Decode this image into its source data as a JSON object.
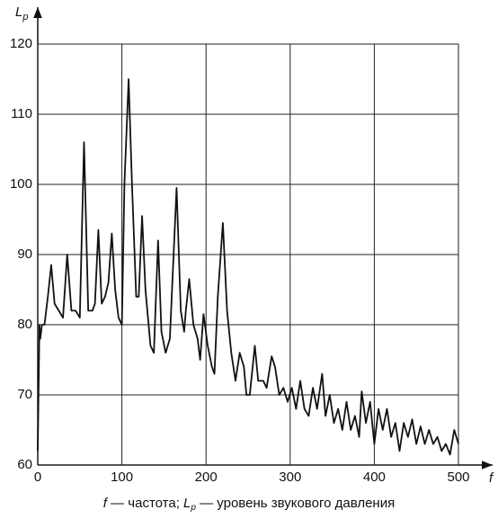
{
  "chart_data": {
    "type": "line",
    "ylabel": "L",
    "ylabel_sub": "p",
    "xlabel": "f",
    "caption": [
      "f",
      " — частота; ",
      "L",
      "p",
      " — уровень звукового давления"
    ],
    "x": [
      0,
      2,
      3,
      5,
      8,
      12,
      16,
      20,
      25,
      30,
      35,
      40,
      45,
      50,
      55,
      60,
      65,
      68,
      72,
      76,
      80,
      84,
      88,
      92,
      96,
      100,
      103,
      108,
      112,
      117,
      120,
      124,
      128,
      134,
      138,
      143,
      147,
      152,
      157,
      165,
      170,
      174,
      176,
      180,
      185,
      190,
      193,
      197,
      202,
      207,
      210,
      214,
      220,
      225,
      230,
      235,
      240,
      245,
      248,
      252,
      258,
      262,
      268,
      272,
      278,
      282,
      287,
      292,
      297,
      302,
      307,
      312,
      317,
      322,
      327,
      332,
      338,
      342,
      347,
      352,
      357,
      362,
      367,
      372,
      377,
      382,
      385,
      390,
      395,
      400,
      405,
      410,
      415,
      420,
      425,
      430,
      435,
      440,
      445,
      450,
      455,
      460,
      465,
      470,
      475,
      480,
      485,
      490,
      495,
      500
    ],
    "series": [
      {
        "color": "#111111",
        "values": [
          62,
          80,
          78,
          80,
          80,
          84,
          88.5,
          83,
          82,
          81,
          90,
          82,
          82,
          81,
          106,
          82,
          82,
          83,
          93.5,
          83,
          84,
          86,
          93,
          85,
          81,
          80,
          100,
          115,
          100,
          84,
          84,
          95.5,
          85,
          77,
          76,
          92,
          79,
          76,
          78,
          99.5,
          82,
          79,
          82,
          86.5,
          80,
          78,
          75,
          81.5,
          77,
          74,
          73,
          84,
          94.5,
          82,
          76,
          72,
          76,
          74,
          70,
          70,
          77,
          72,
          72,
          71,
          75.5,
          74,
          70,
          71,
          69,
          71,
          68,
          72,
          68,
          67,
          71,
          68,
          73,
          67,
          70,
          66,
          68,
          65,
          69,
          65,
          67,
          64,
          70.5,
          66,
          69,
          63,
          68,
          65,
          68,
          64,
          66,
          62,
          66,
          64,
          66.5,
          63,
          65.5,
          63,
          65,
          63,
          64,
          62,
          63,
          61.5,
          65,
          63
        ]
      }
    ],
    "xlim": [
      0,
      500
    ],
    "xticks": [
      0,
      100,
      200,
      300,
      400,
      500
    ],
    "ylim": [
      60,
      120
    ],
    "yticks": [
      60,
      70,
      80,
      90,
      100,
      110,
      120
    ],
    "grid": true
  }
}
